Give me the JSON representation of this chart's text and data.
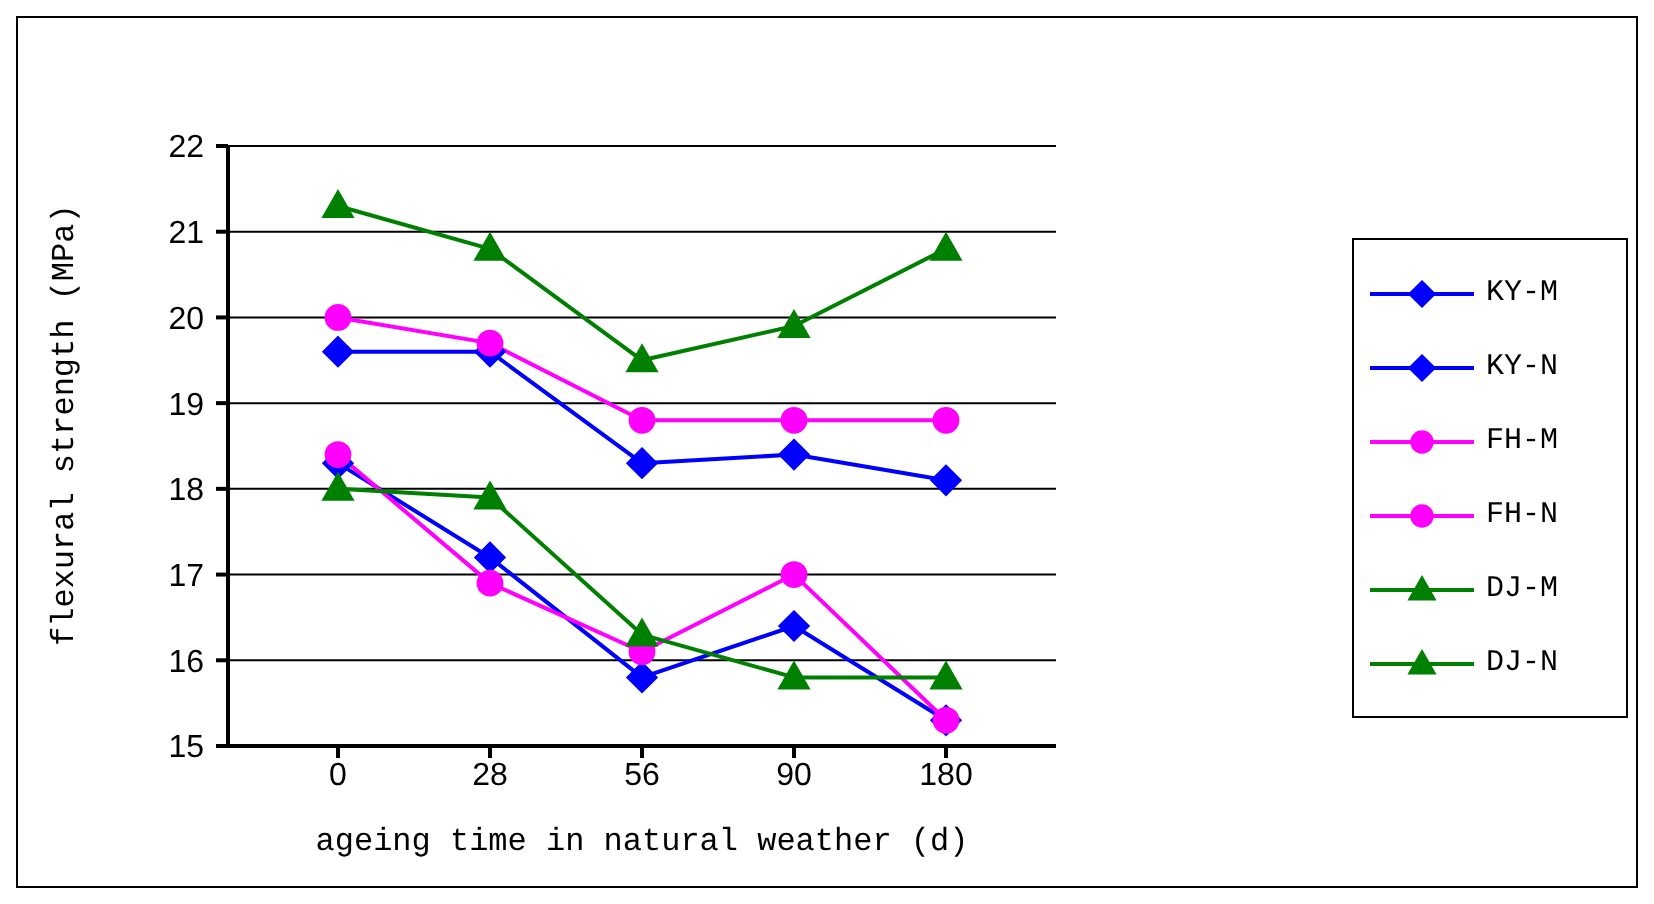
{
  "chart_data": {
    "type": "line",
    "xlabel": "ageing time in natural weather (d)",
    "ylabel": "flexural strength (MPa)",
    "categories": [
      "0",
      "28",
      "56",
      "90",
      "180"
    ],
    "series": [
      {
        "name": "KY-M",
        "color": "#0000ff",
        "marker": "diamond",
        "values": [
          18.3,
          17.2,
          15.8,
          16.4,
          15.3
        ]
      },
      {
        "name": "KY-N",
        "color": "#0000ff",
        "marker": "diamond",
        "values": [
          19.6,
          19.6,
          18.3,
          18.4,
          18.1
        ]
      },
      {
        "name": "FH-M",
        "color": "#ff00ff",
        "marker": "circle",
        "values": [
          18.4,
          16.9,
          16.1,
          17.0,
          15.3
        ]
      },
      {
        "name": "FH-N",
        "color": "#ff00ff",
        "marker": "circle",
        "values": [
          20.0,
          19.7,
          18.8,
          18.8,
          18.8
        ]
      },
      {
        "name": "DJ-M",
        "color": "#008000",
        "marker": "triangle",
        "values": [
          18.0,
          17.9,
          16.3,
          15.8,
          15.8
        ]
      },
      {
        "name": "DJ-N",
        "color": "#008000",
        "marker": "triangle",
        "values": [
          21.3,
          20.8,
          19.5,
          19.9,
          20.8
        ]
      }
    ],
    "ylim": [
      15,
      22
    ],
    "yticks": [
      15,
      16,
      17,
      18,
      19,
      20,
      21,
      22
    ],
    "grid": "y",
    "legend": "right",
    "line_style": "solid"
  }
}
